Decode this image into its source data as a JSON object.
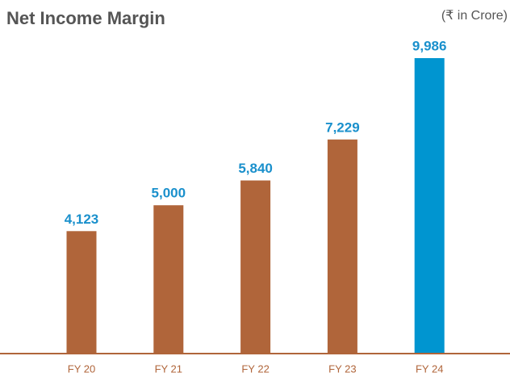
{
  "chart_data": {
    "type": "bar",
    "title": "Net Income Margin",
    "unit": "(₹ in Crore)",
    "categories": [
      "FY 20",
      "FY 21",
      "FY 22",
      "FY 23",
      "FY 24"
    ],
    "values": [
      4123,
      5000,
      5840,
      7229,
      9986
    ],
    "value_labels": [
      "4,123",
      "5,000",
      "5,840",
      "7,229",
      "9,986"
    ],
    "colors": [
      "#b0653a",
      "#b0653a",
      "#b0653a",
      "#b0653a",
      "#0095d0"
    ]
  }
}
